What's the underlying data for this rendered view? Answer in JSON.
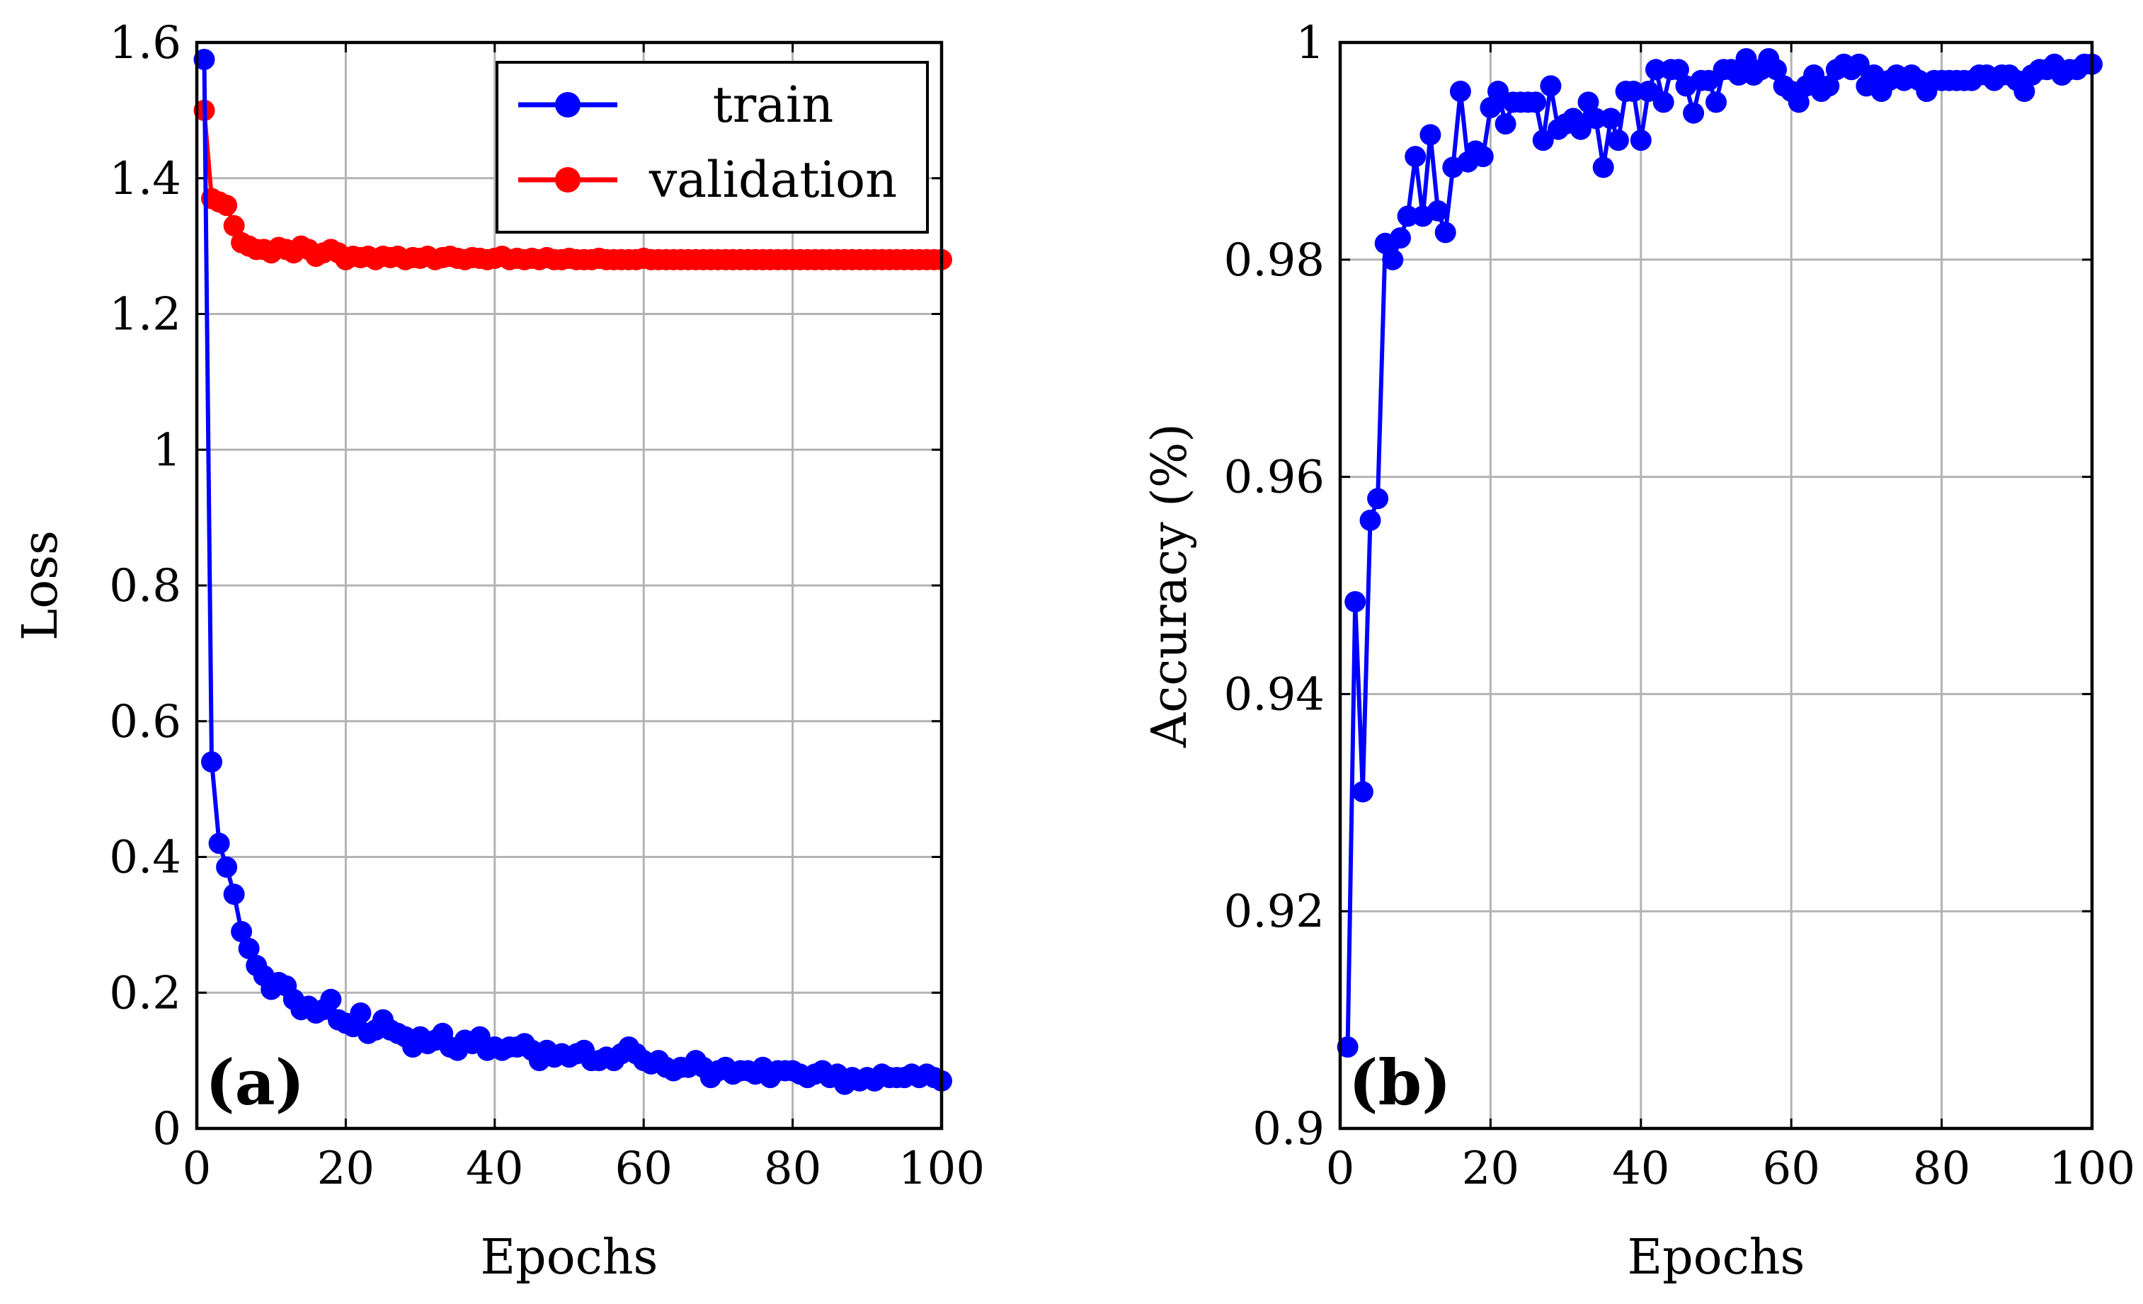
{
  "colors": {
    "train": "#0000ff",
    "validation": "#ff0000",
    "grid": "#b3b3b3",
    "axis": "#000000"
  },
  "chart_data": [
    {
      "type": "line",
      "panel_label": "(a)",
      "title": "",
      "xlabel": "Epochs",
      "ylabel": "Loss",
      "xlim": [
        0,
        100
      ],
      "ylim": [
        0,
        1.6
      ],
      "xticks": [
        0,
        20,
        40,
        60,
        80,
        100
      ],
      "xtick_labels": [
        "0",
        "20",
        "40",
        "60",
        "80",
        "100"
      ],
      "yticks": [
        0,
        0.2,
        0.4,
        0.6,
        0.8,
        1.0,
        1.2,
        1.4,
        1.6
      ],
      "ytick_labels": [
        "0",
        "0.2",
        "0.4",
        "0.6",
        "0.8",
        "1",
        "1.2",
        "1.4",
        "1.6"
      ],
      "grid": true,
      "legend": {
        "placement": "top-right",
        "entries": [
          "train",
          "validation"
        ]
      },
      "x": [
        1,
        2,
        3,
        4,
        5,
        6,
        7,
        8,
        9,
        10,
        11,
        12,
        13,
        14,
        15,
        16,
        17,
        18,
        19,
        20,
        21,
        22,
        23,
        24,
        25,
        26,
        27,
        28,
        29,
        30,
        31,
        32,
        33,
        34,
        35,
        36,
        37,
        38,
        39,
        40,
        41,
        42,
        43,
        44,
        45,
        46,
        47,
        48,
        49,
        50,
        51,
        52,
        53,
        54,
        55,
        56,
        57,
        58,
        59,
        60,
        61,
        62,
        63,
        64,
        65,
        66,
        67,
        68,
        69,
        70,
        71,
        72,
        73,
        74,
        75,
        76,
        77,
        78,
        79,
        80,
        81,
        82,
        83,
        84,
        85,
        86,
        87,
        88,
        89,
        90,
        91,
        92,
        93,
        94,
        95,
        96,
        97,
        98,
        99,
        100
      ],
      "series": [
        {
          "name": "train",
          "color": "#0000ff",
          "values": [
            1.575,
            0.54,
            0.42,
            0.385,
            0.345,
            0.29,
            0.265,
            0.24,
            0.225,
            0.205,
            0.215,
            0.21,
            0.19,
            0.175,
            0.18,
            0.17,
            0.175,
            0.19,
            0.16,
            0.155,
            0.15,
            0.17,
            0.14,
            0.145,
            0.16,
            0.145,
            0.14,
            0.135,
            0.12,
            0.135,
            0.125,
            0.13,
            0.14,
            0.12,
            0.115,
            0.13,
            0.125,
            0.135,
            0.115,
            0.12,
            0.115,
            0.12,
            0.12,
            0.125,
            0.115,
            0.1,
            0.115,
            0.105,
            0.11,
            0.105,
            0.11,
            0.115,
            0.1,
            0.1,
            0.105,
            0.1,
            0.11,
            0.12,
            0.11,
            0.1,
            0.095,
            0.1,
            0.09,
            0.085,
            0.09,
            0.09,
            0.1,
            0.09,
            0.075,
            0.085,
            0.09,
            0.08,
            0.085,
            0.085,
            0.08,
            0.09,
            0.075,
            0.085,
            0.085,
            0.085,
            0.08,
            0.075,
            0.08,
            0.085,
            0.075,
            0.08,
            0.065,
            0.075,
            0.07,
            0.075,
            0.07,
            0.08,
            0.075,
            0.075,
            0.075,
            0.08,
            0.075,
            0.08,
            0.075,
            0.07
          ]
        },
        {
          "name": "validation",
          "color": "#ff0000",
          "values": [
            1.5,
            1.37,
            1.365,
            1.36,
            1.33,
            1.305,
            1.3,
            1.295,
            1.295,
            1.29,
            1.298,
            1.295,
            1.29,
            1.3,
            1.295,
            1.285,
            1.29,
            1.295,
            1.29,
            1.28,
            1.285,
            1.283,
            1.285,
            1.28,
            1.285,
            1.283,
            1.285,
            1.28,
            1.283,
            1.282,
            1.285,
            1.28,
            1.283,
            1.285,
            1.282,
            1.28,
            1.283,
            1.282,
            1.28,
            1.282,
            1.285,
            1.28,
            1.282,
            1.28,
            1.282,
            1.28,
            1.283,
            1.28,
            1.28,
            1.282,
            1.28,
            1.28,
            1.28,
            1.282,
            1.28,
            1.28,
            1.28,
            1.28,
            1.28,
            1.282,
            1.28,
            1.28,
            1.28,
            1.28,
            1.28,
            1.28,
            1.28,
            1.28,
            1.28,
            1.28,
            1.28,
            1.28,
            1.28,
            1.28,
            1.28,
            1.28,
            1.28,
            1.28,
            1.28,
            1.28,
            1.28,
            1.28,
            1.28,
            1.28,
            1.28,
            1.28,
            1.28,
            1.28,
            1.28,
            1.28,
            1.28,
            1.28,
            1.28,
            1.28,
            1.28,
            1.28,
            1.28,
            1.28,
            1.28,
            1.28
          ]
        }
      ]
    },
    {
      "type": "line",
      "panel_label": "(b)",
      "title": "",
      "xlabel": "Epochs",
      "ylabel": "Accuracy (%)",
      "xlim": [
        0,
        100
      ],
      "ylim": [
        0.9,
        1.0
      ],
      "xticks": [
        0,
        20,
        40,
        60,
        80,
        100
      ],
      "xtick_labels": [
        "0",
        "20",
        "40",
        "60",
        "80",
        "100"
      ],
      "yticks": [
        0.9,
        0.92,
        0.94,
        0.96,
        0.98,
        1.0
      ],
      "ytick_labels": [
        "0.9",
        "0.92",
        "0.94",
        "0.96",
        "0.98",
        "1"
      ],
      "grid": true,
      "x": [
        1,
        2,
        3,
        4,
        5,
        6,
        7,
        8,
        9,
        10,
        11,
        12,
        13,
        14,
        15,
        16,
        17,
        18,
        19,
        20,
        21,
        22,
        23,
        24,
        25,
        26,
        27,
        28,
        29,
        30,
        31,
        32,
        33,
        34,
        35,
        36,
        37,
        38,
        39,
        40,
        41,
        42,
        43,
        44,
        45,
        46,
        47,
        48,
        49,
        50,
        51,
        52,
        53,
        54,
        55,
        56,
        57,
        58,
        59,
        60,
        61,
        62,
        63,
        64,
        65,
        66,
        67,
        68,
        69,
        70,
        71,
        72,
        73,
        74,
        75,
        76,
        77,
        78,
        79,
        80,
        81,
        82,
        83,
        84,
        85,
        86,
        87,
        88,
        89,
        90,
        91,
        92,
        93,
        94,
        95,
        96,
        97,
        98,
        99,
        100
      ],
      "series": [
        {
          "name": "train",
          "color": "#0000ff",
          "values": [
            0.9075,
            0.9485,
            0.931,
            0.956,
            0.958,
            0.9815,
            0.98,
            0.982,
            0.984,
            0.9895,
            0.984,
            0.9915,
            0.9845,
            0.9825,
            0.9885,
            0.9955,
            0.989,
            0.99,
            0.9895,
            0.994,
            0.9955,
            0.9925,
            0.9945,
            0.9945,
            0.9945,
            0.9945,
            0.991,
            0.996,
            0.992,
            0.9925,
            0.993,
            0.992,
            0.9945,
            0.993,
            0.9885,
            0.993,
            0.991,
            0.9955,
            0.9955,
            0.991,
            0.9955,
            0.9975,
            0.9945,
            0.9975,
            0.9975,
            0.996,
            0.9935,
            0.9965,
            0.9965,
            0.9945,
            0.9975,
            0.9975,
            0.997,
            0.9985,
            0.997,
            0.9975,
            0.9985,
            0.9975,
            0.996,
            0.9955,
            0.9945,
            0.996,
            0.997,
            0.9955,
            0.996,
            0.9975,
            0.998,
            0.9975,
            0.998,
            0.996,
            0.997,
            0.9955,
            0.9965,
            0.997,
            0.9965,
            0.997,
            0.9965,
            0.9955,
            0.9965,
            0.9965,
            0.9965,
            0.9965,
            0.9965,
            0.9965,
            0.997,
            0.997,
            0.9965,
            0.997,
            0.997,
            0.9965,
            0.9955,
            0.997,
            0.9975,
            0.9975,
            0.998,
            0.997,
            0.9975,
            0.9975,
            0.998,
            0.998
          ]
        }
      ]
    }
  ]
}
